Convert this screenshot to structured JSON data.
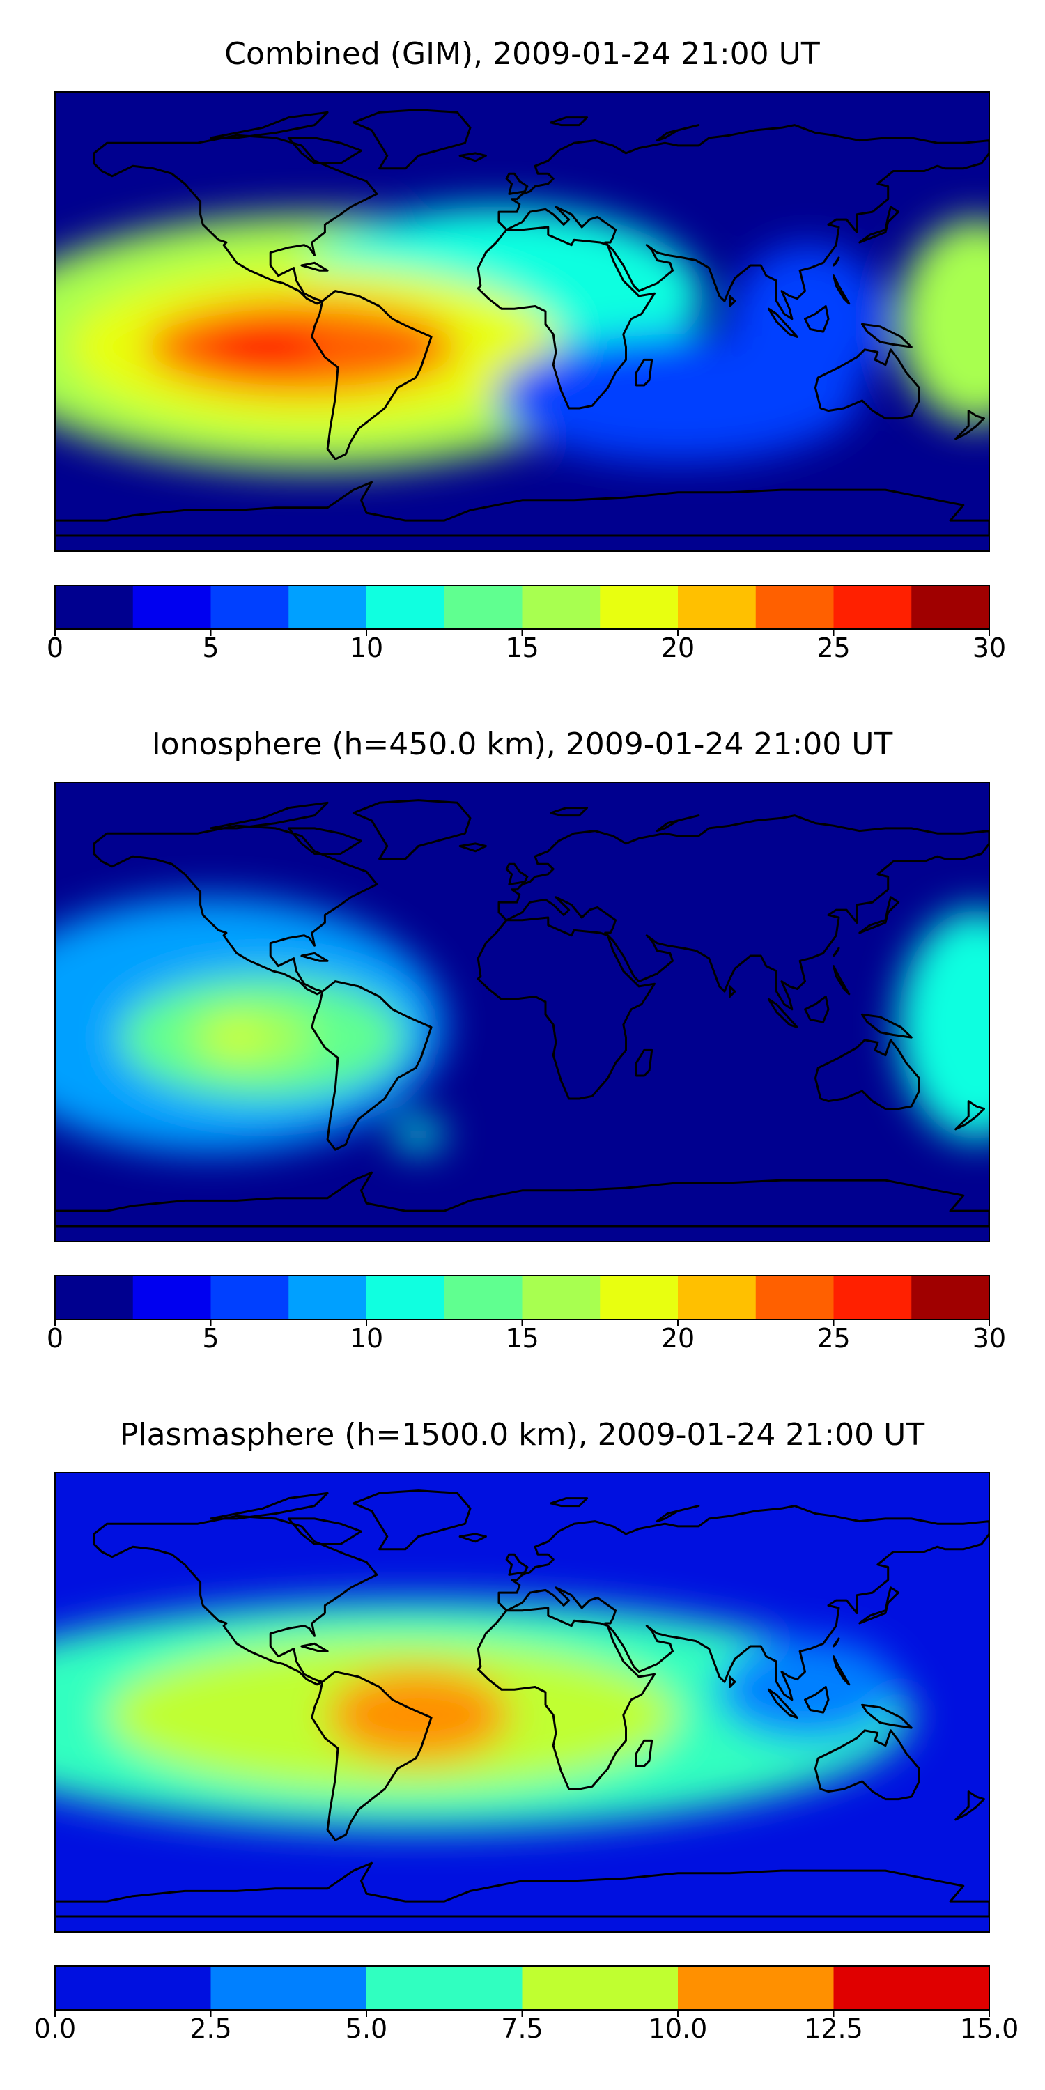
{
  "chart_data": [
    {
      "type": "heatmap",
      "title": "Combined (GIM), 2009-01-24 21:00 UT",
      "colorbar": {
        "ticks": [
          "0",
          "5",
          "10",
          "15",
          "20",
          "25",
          "30"
        ],
        "range": [
          0,
          30
        ],
        "levels": [
          0,
          2.5,
          5,
          7.5,
          10,
          12.5,
          15,
          17.5,
          20,
          22.5,
          25,
          27.5,
          30
        ],
        "colors": [
          "#00008f",
          "#0000f0",
          "#0040ff",
          "#00a0ff",
          "#10ffe0",
          "#60ff90",
          "#a8ff50",
          "#e8ff10",
          "#ffc000",
          "#ff6000",
          "#ff2000",
          "#a00000"
        ]
      },
      "blobs": [
        {
          "lon": -80,
          "lat": -8,
          "rx": 130,
          "ry": 50,
          "value": 16
        },
        {
          "lon": -10,
          "lat": 10,
          "rx": 80,
          "ry": 35,
          "value": 10
        },
        {
          "lon": -80,
          "lat": -10,
          "rx": 95,
          "ry": 32,
          "value": 19
        },
        {
          "lon": -85,
          "lat": -10,
          "rx": 60,
          "ry": 18,
          "value": 22.5
        },
        {
          "lon": -100,
          "lat": -10,
          "rx": 22,
          "ry": 10,
          "value": 25
        },
        {
          "lon": -55,
          "lat": -12,
          "rx": 22,
          "ry": 9,
          "value": 24
        },
        {
          "lon": 110,
          "lat": 0,
          "rx": 30,
          "ry": 30,
          "value": 5
        },
        {
          "lon": 175,
          "lat": 0,
          "rx": 30,
          "ry": 40,
          "value": 15
        },
        {
          "lon": 60,
          "lat": -30,
          "rx": 70,
          "ry": 25,
          "value": 5
        }
      ]
    },
    {
      "type": "heatmap",
      "title": "Ionosphere  (h=450.0 km), 2009-01-24 21:00 UT",
      "colorbar": {
        "ticks": [
          "0",
          "5",
          "10",
          "15",
          "20",
          "25",
          "30"
        ],
        "range": [
          0,
          30
        ],
        "levels": [
          0,
          2.5,
          5,
          7.5,
          10,
          12.5,
          15,
          17.5,
          20,
          22.5,
          25,
          27.5,
          30
        ],
        "colors": [
          "#00008f",
          "#0000f0",
          "#0040ff",
          "#00a0ff",
          "#10ffe0",
          "#60ff90",
          "#a8ff50",
          "#e8ff10",
          "#ffc000",
          "#ff6000",
          "#ff2000",
          "#a00000"
        ]
      },
      "blobs": [
        {
          "lon": -120,
          "lat": -5,
          "rx": 90,
          "ry": 50,
          "value": 9
        },
        {
          "lon": -100,
          "lat": -10,
          "rx": 55,
          "ry": 24,
          "value": 13
        },
        {
          "lon": -105,
          "lat": -10,
          "rx": 25,
          "ry": 12,
          "value": 16
        },
        {
          "lon": -110,
          "lat": -10,
          "rx": 8,
          "ry": 5,
          "value": 19
        },
        {
          "lon": 175,
          "lat": -5,
          "rx": 30,
          "ry": 45,
          "value": 10
        },
        {
          "lon": -40,
          "lat": -48,
          "rx": 10,
          "ry": 6,
          "value": 11
        }
      ]
    },
    {
      "type": "heatmap",
      "title": "Plasmasphere (h=1500.0 km), 2009-01-24 21:00 UT",
      "colorbar": {
        "ticks": [
          "0.0",
          "2.5",
          "5.0",
          "7.5",
          "10.0",
          "12.5",
          "15.0"
        ],
        "range": [
          0,
          15
        ],
        "levels": [
          0,
          2.5,
          5,
          7.5,
          10,
          12.5,
          15
        ],
        "colors": [
          "#0010e0",
          "#0080ff",
          "#30ffc0",
          "#c0ff30",
          "#ff9000",
          "#e00000"
        ]
      },
      "blobs": [
        {
          "lon": -40,
          "lat": -5,
          "rx": 190,
          "ry": 45,
          "value": 5.5
        },
        {
          "lon": -50,
          "lat": -5,
          "rx": 110,
          "ry": 30,
          "value": 8.5
        },
        {
          "lon": -40,
          "lat": -5,
          "rx": 35,
          "ry": 18,
          "value": 11
        },
        {
          "lon": 110,
          "lat": 5,
          "rx": 35,
          "ry": 20,
          "value": 4
        }
      ]
    }
  ]
}
